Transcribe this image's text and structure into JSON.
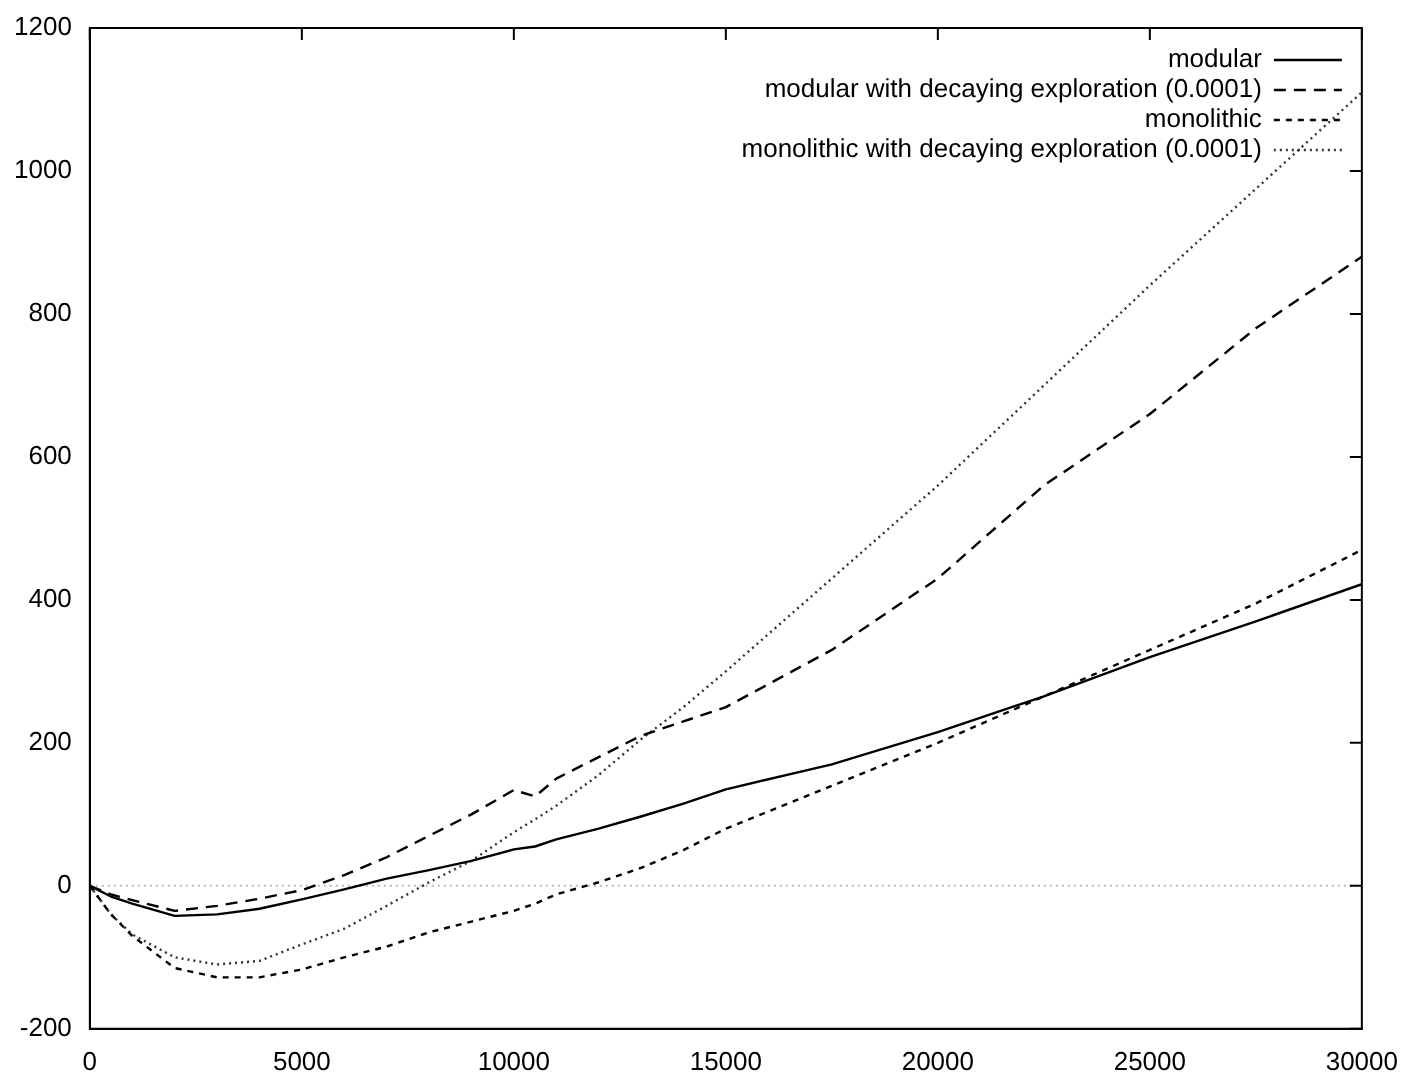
{
  "chart_data": {
    "type": "line",
    "x": [
      0,
      500,
      1000,
      2000,
      3000,
      4000,
      5000,
      6000,
      7000,
      8000,
      9000,
      10000,
      10500,
      11000,
      12000,
      13000,
      14000,
      15000,
      17500,
      20000,
      22500,
      25000,
      27500,
      30000
    ],
    "series": [
      {
        "name": "modular",
        "color": "#000000",
        "line_style": "solid",
        "values": [
          0,
          -15,
          -25,
          -42,
          -40,
          -32,
          -19,
          -5,
          10,
          22,
          35,
          51,
          55,
          65,
          80,
          97,
          115,
          135,
          170,
          215,
          265,
          320,
          370,
          422
        ]
      },
      {
        "name": "modular with decaying exploration (0.0001)",
        "color": "#000000",
        "line_style": "dashed",
        "values": [
          0,
          -12,
          -20,
          -35,
          -28,
          -18,
          -6,
          15,
          40,
          70,
          100,
          134,
          125,
          150,
          180,
          210,
          230,
          250,
          330,
          430,
          560,
          660,
          780,
          880
        ]
      },
      {
        "name": "monolithic",
        "color": "#000000",
        "line_style": "shortdash",
        "values": [
          0,
          -40,
          -70,
          -115,
          -128,
          -128,
          -117,
          -100,
          -85,
          -65,
          -50,
          -35,
          -25,
          -12,
          5,
          25,
          50,
          80,
          140,
          200,
          265,
          330,
          395,
          470
        ]
      },
      {
        "name": "monolithic with decaying exploration (0.0001)",
        "color": "#333333",
        "line_style": "dotted",
        "values": [
          0,
          -40,
          -68,
          -100,
          -110,
          -105,
          -82,
          -60,
          -28,
          5,
          35,
          75,
          93,
          112,
          155,
          205,
          250,
          300,
          430,
          560,
          700,
          840,
          975,
          1110
        ]
      }
    ],
    "xlim": [
      0,
      30000
    ],
    "xticks": [
      0,
      5000,
      10000,
      15000,
      20000,
      25000,
      30000
    ],
    "ylim": [
      -200,
      1200
    ],
    "yticks": [
      -200,
      0,
      200,
      400,
      600,
      800,
      1000,
      1200
    ],
    "ref_lines": [
      {
        "axis": "y",
        "value": 0,
        "color": "#bbbbbb",
        "line_style": "dotted"
      }
    ],
    "grid": false,
    "legend": "top right",
    "marker": "none"
  }
}
